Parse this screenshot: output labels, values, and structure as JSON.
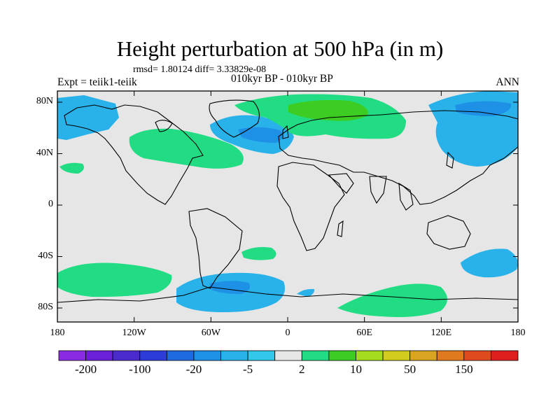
{
  "title": "Height perturbation at 500 hPa (in m)",
  "stats": "rmsd= 1.80124 diff= 3.33829e-08",
  "period": "010kyr BP - 010kyr BP",
  "expt": "Expt = teiik1-teiik",
  "season": "ANN",
  "y_ticks": [
    "80N",
    "40N",
    "0",
    "40S",
    "80S"
  ],
  "x_ticks": [
    "180",
    "120W",
    "60W",
    "0",
    "60E",
    "120E",
    "180"
  ],
  "colorbar": {
    "colors": [
      "#8a2be2",
      "#6a1fd8",
      "#4b2bcc",
      "#2d3cd8",
      "#1f6ae0",
      "#1e90e6",
      "#29b2ea",
      "#33c8ea",
      "#e6e6e6",
      "#22dc84",
      "#3ccc22",
      "#a6dc1e",
      "#d2cc1e",
      "#d8a422",
      "#e07a1e",
      "#e04a1e",
      "#e01e1e"
    ],
    "labels": [
      "-200",
      "-100",
      "-20",
      "-5",
      "2",
      "10",
      "50",
      "150"
    ]
  },
  "map": {
    "ocean_color": "#e6e6e6",
    "positive_color": "#22dc84",
    "strong_positive_color": "#3ccc22",
    "negative_color": "#29b2ea",
    "strong_negative_color": "#1e90e6"
  }
}
